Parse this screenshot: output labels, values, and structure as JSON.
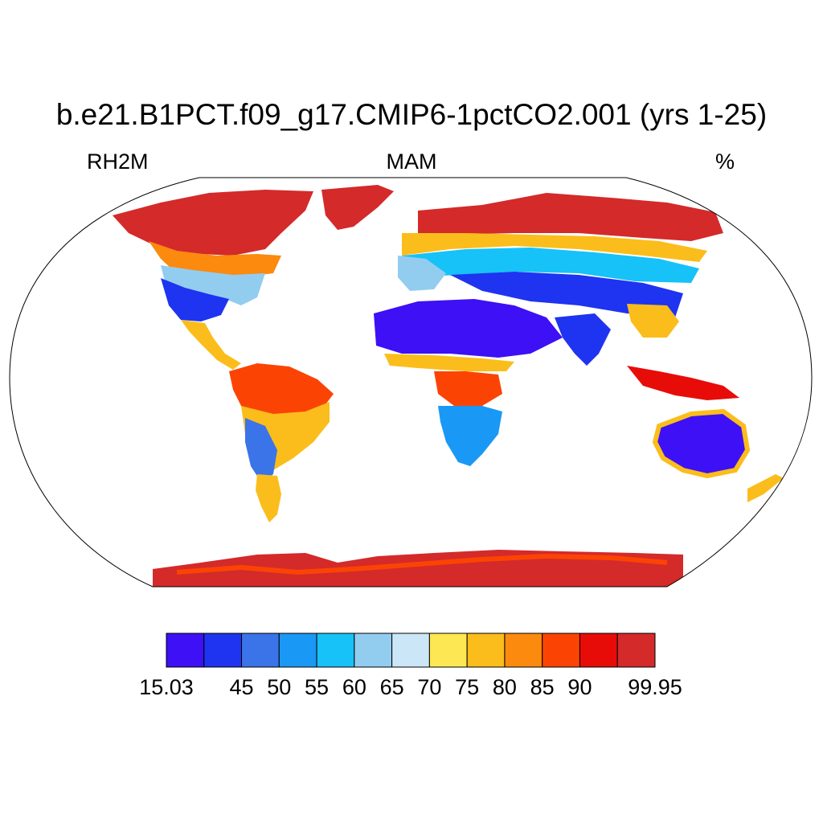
{
  "title": "b.e21.B1PCT.f09_g17.CMIP6-1pctCO2.001 (yrs 1-25)",
  "left_label": "RH2M",
  "center_label": "MAM",
  "right_label": "%",
  "colorbar": {
    "colors": [
      "#3d10f5",
      "#1e34f0",
      "#3a74e8",
      "#1a98f5",
      "#16c2f7",
      "#92cdf0",
      "#cbe6f6",
      "#fde853",
      "#fbbd1b",
      "#fb8a0e",
      "#fb4404",
      "#e80c08",
      "#d42a2a"
    ],
    "labels": [
      "15.03",
      "45",
      "50",
      "55",
      "60",
      "65",
      "70",
      "75",
      "80",
      "85",
      "90",
      "99.95"
    ]
  }
}
